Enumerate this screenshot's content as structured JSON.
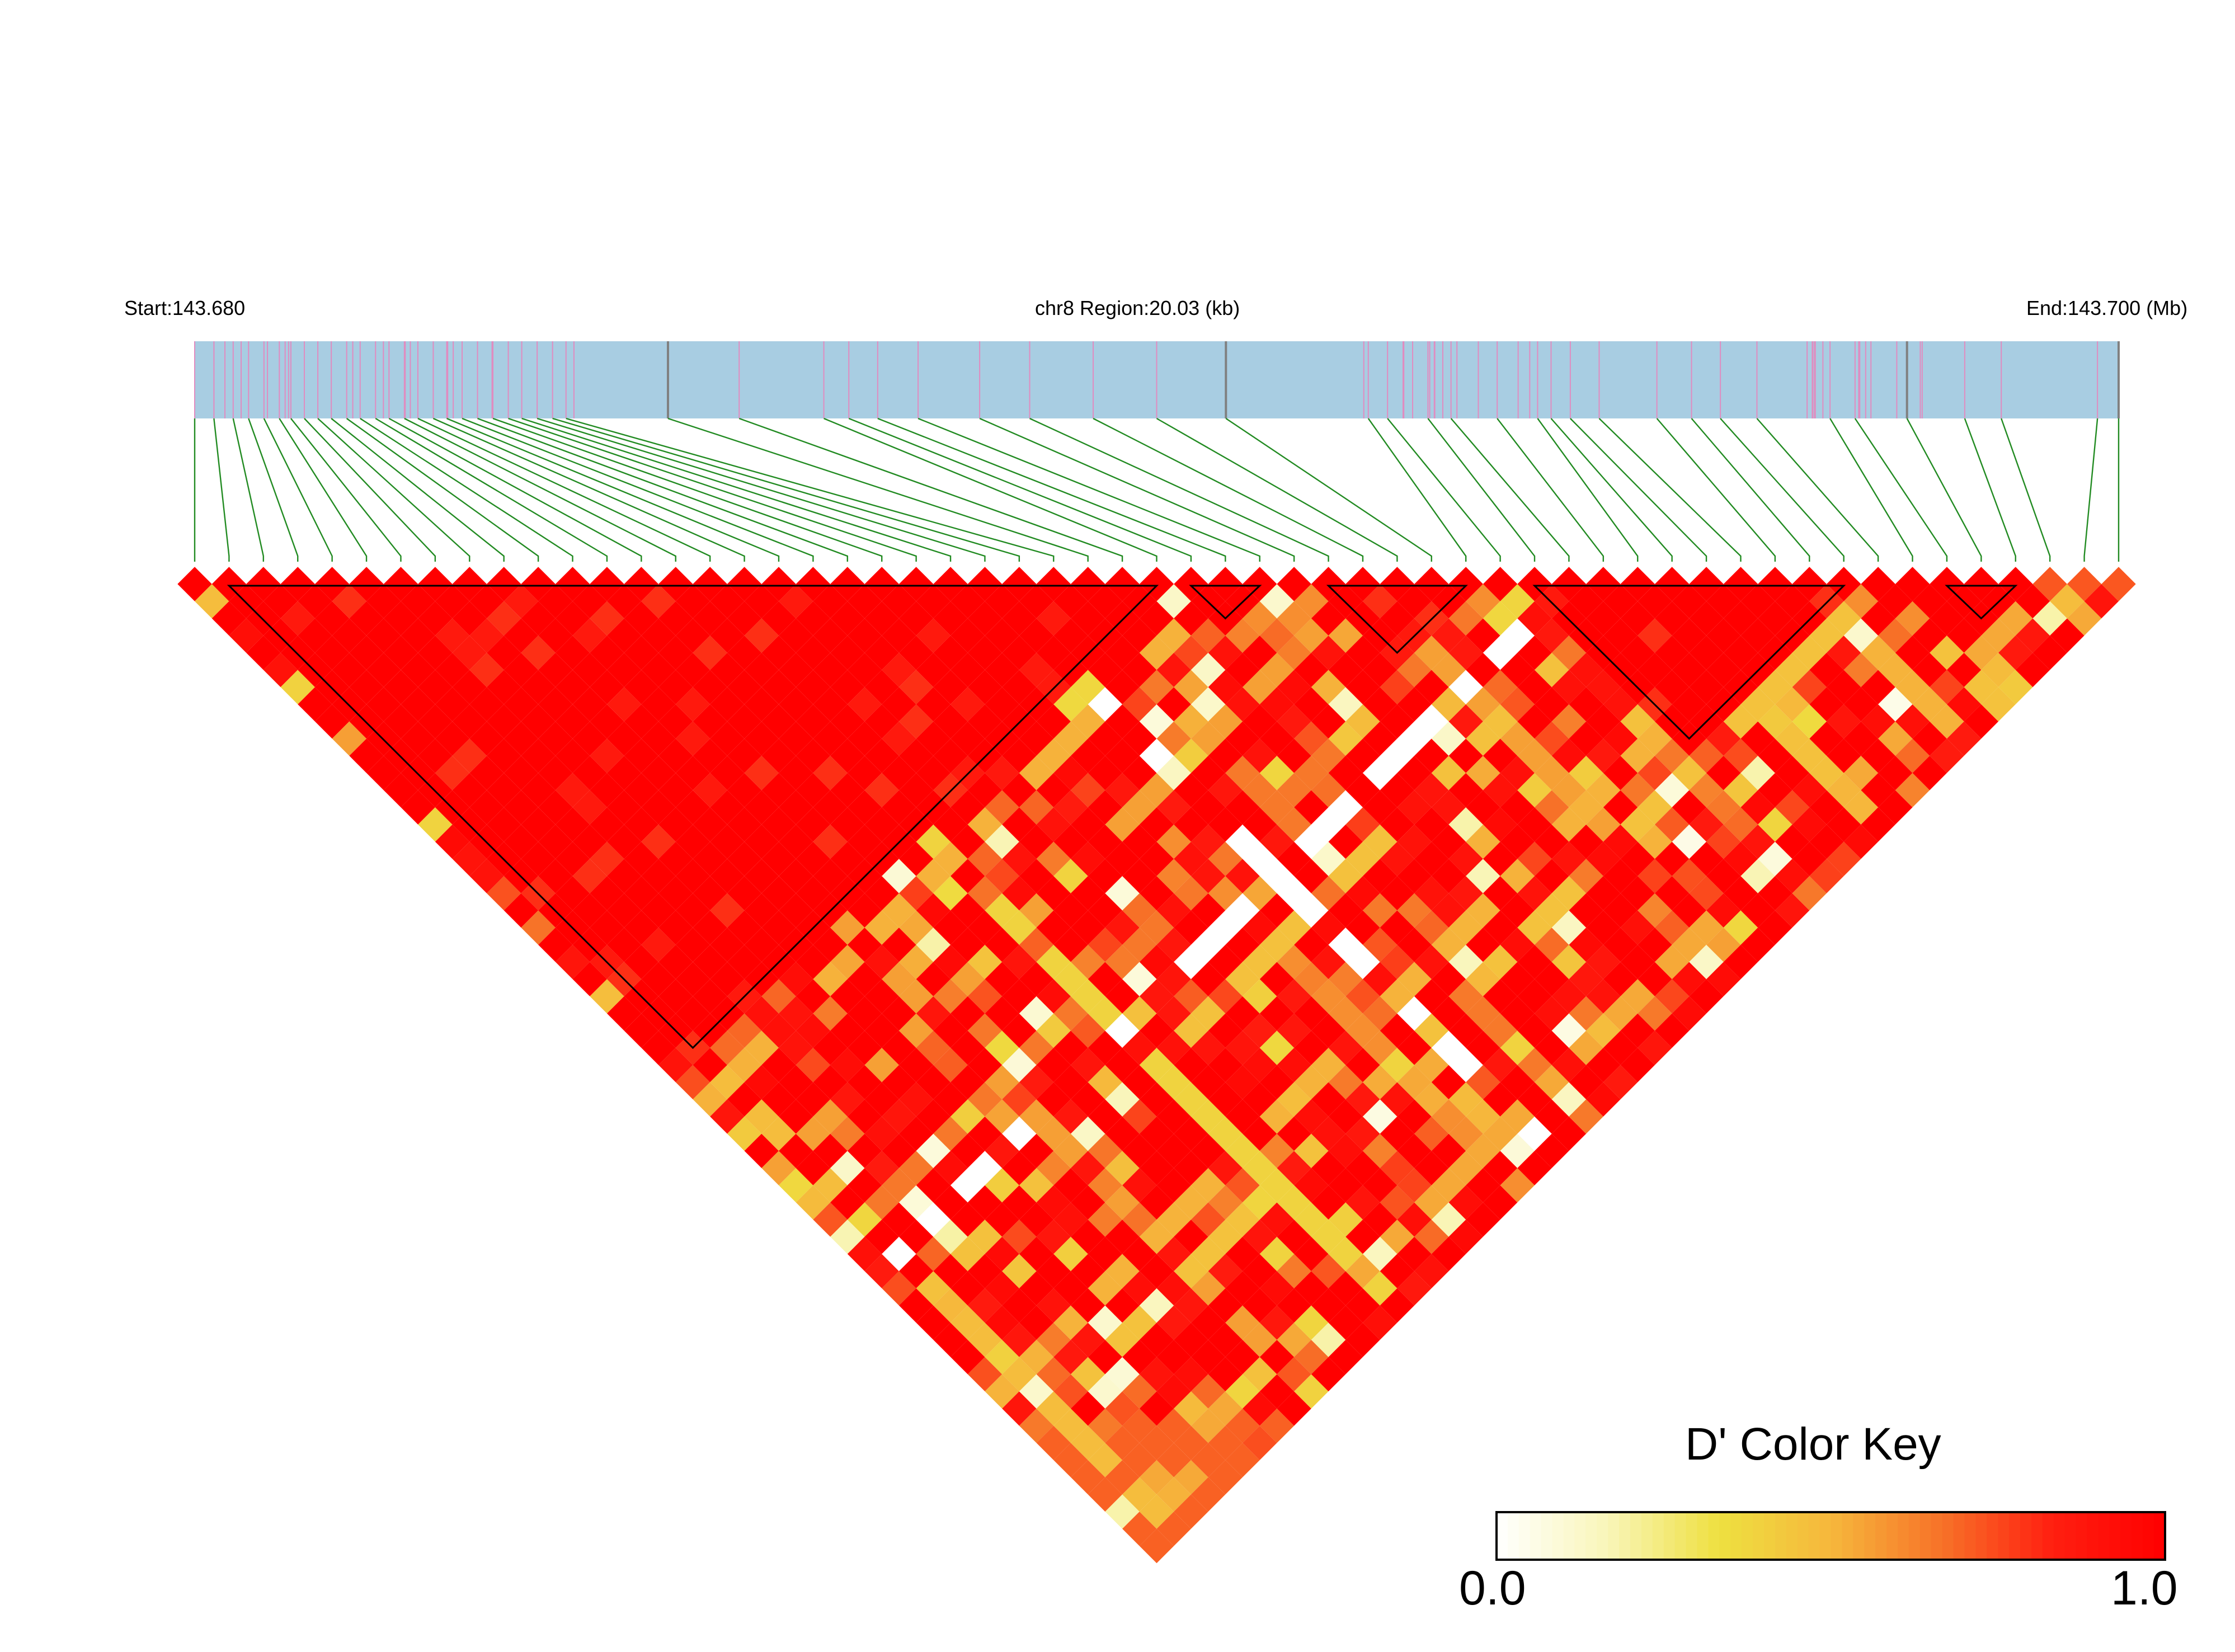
{
  "chart_data": {
    "type": "heatmap",
    "subtype": "LD triangle heatmap (D')",
    "header": {
      "start_label": "Start:143.680",
      "region_label": "chr8 Region:20.03 (kb)",
      "end_label": "End:143.700 (Mb)"
    },
    "region": {
      "chromosome": "chr8",
      "start_mb": 143.68,
      "end_mb": 143.7,
      "length_kb": 20.03
    },
    "snp_count": 57,
    "snp_positions_frac": [
      0.0,
      0.01,
      0.02,
      0.028,
      0.036,
      0.044,
      0.05,
      0.057,
      0.064,
      0.071,
      0.079,
      0.086,
      0.094,
      0.101,
      0.109,
      0.116,
      0.124,
      0.131,
      0.139,
      0.147,
      0.155,
      0.163,
      0.17,
      0.178,
      0.186,
      0.193,
      0.246,
      0.283,
      0.327,
      0.34,
      0.355,
      0.376,
      0.408,
      0.434,
      0.467,
      0.5,
      0.536,
      0.61,
      0.62,
      0.641,
      0.653,
      0.677,
      0.698,
      0.705,
      0.715,
      0.73,
      0.76,
      0.778,
      0.793,
      0.812,
      0.85,
      0.863,
      0.89,
      0.92,
      0.939,
      0.989,
      1.0
    ],
    "ld_blocks": [
      {
        "first": 1,
        "last": 28
      },
      {
        "first": 29,
        "last": 31
      },
      {
        "first": 33,
        "last": 37
      },
      {
        "first": 39,
        "last": 48
      },
      {
        "first": 51,
        "last": 53
      }
    ],
    "color_key": {
      "title": "D' Color Key",
      "min_label": "0.0",
      "max_label": "1.0",
      "min": 0.0,
      "max": 1.0,
      "stops": [
        "#ffffff",
        "#f9f5b8",
        "#eee040",
        "#f6b73c",
        "#f77228",
        "#ff1e10",
        "#ff0000"
      ]
    },
    "colors": {
      "track_fill": "#a8cde2",
      "snp_tick": "#e08cc0",
      "snp_tick_dark": "#808080",
      "connector": "#228b22",
      "block_outline": "#000000"
    }
  }
}
